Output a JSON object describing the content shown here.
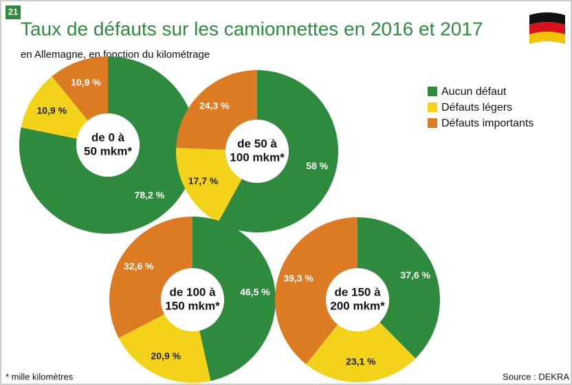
{
  "header": {
    "number": "21",
    "title": "Taux de défauts sur les camionnettes en 2016 et 2017",
    "subtitle": "en Allemagne, en fonction du kilométrage"
  },
  "footer": {
    "note": "* mille kilomètres",
    "source": "Source : DEKRA"
  },
  "chart_data": [
    {
      "type": "pie",
      "center_label": [
        "de 0 à",
        "50 mkm*"
      ],
      "categories": [
        "Aucun défaut",
        "Défauts légers",
        "Défauts importants"
      ],
      "colors": [
        "#2e8b3e",
        "#f3d21a",
        "#dd7b22"
      ],
      "values": [
        78.2,
        10.9,
        10.9
      ],
      "value_labels": [
        "78,2 %",
        "10,9 %",
        "10,9 %"
      ]
    },
    {
      "type": "pie",
      "center_label": [
        "de 50 à",
        "100 mkm*"
      ],
      "categories": [
        "Aucun défaut",
        "Défauts légers",
        "Défauts importants"
      ],
      "colors": [
        "#2e8b3e",
        "#f3d21a",
        "#dd7b22"
      ],
      "values": [
        58,
        17.7,
        24.3
      ],
      "value_labels": [
        "58 %",
        "17,7 %",
        "24,3 %"
      ]
    },
    {
      "type": "pie",
      "center_label": [
        "de 100 à",
        "150 mkm*"
      ],
      "categories": [
        "Aucun défaut",
        "Défauts légers",
        "Défauts importants"
      ],
      "colors": [
        "#2e8b3e",
        "#f3d21a",
        "#dd7b22"
      ],
      "values": [
        46.5,
        20.9,
        32.6
      ],
      "value_labels": [
        "46,5 %",
        "20,9 %",
        "32,6 %"
      ]
    },
    {
      "type": "pie",
      "center_label": [
        "de 150 à",
        "200 mkm*"
      ],
      "categories": [
        "Aucun défaut",
        "Défauts légers",
        "Défauts importants"
      ],
      "colors": [
        "#2e8b3e",
        "#f3d21a",
        "#dd7b22"
      ],
      "values": [
        37.6,
        23.1,
        39.3
      ],
      "value_labels": [
        "37,6 %",
        "23,1 %",
        "39,3 %"
      ]
    }
  ]
}
